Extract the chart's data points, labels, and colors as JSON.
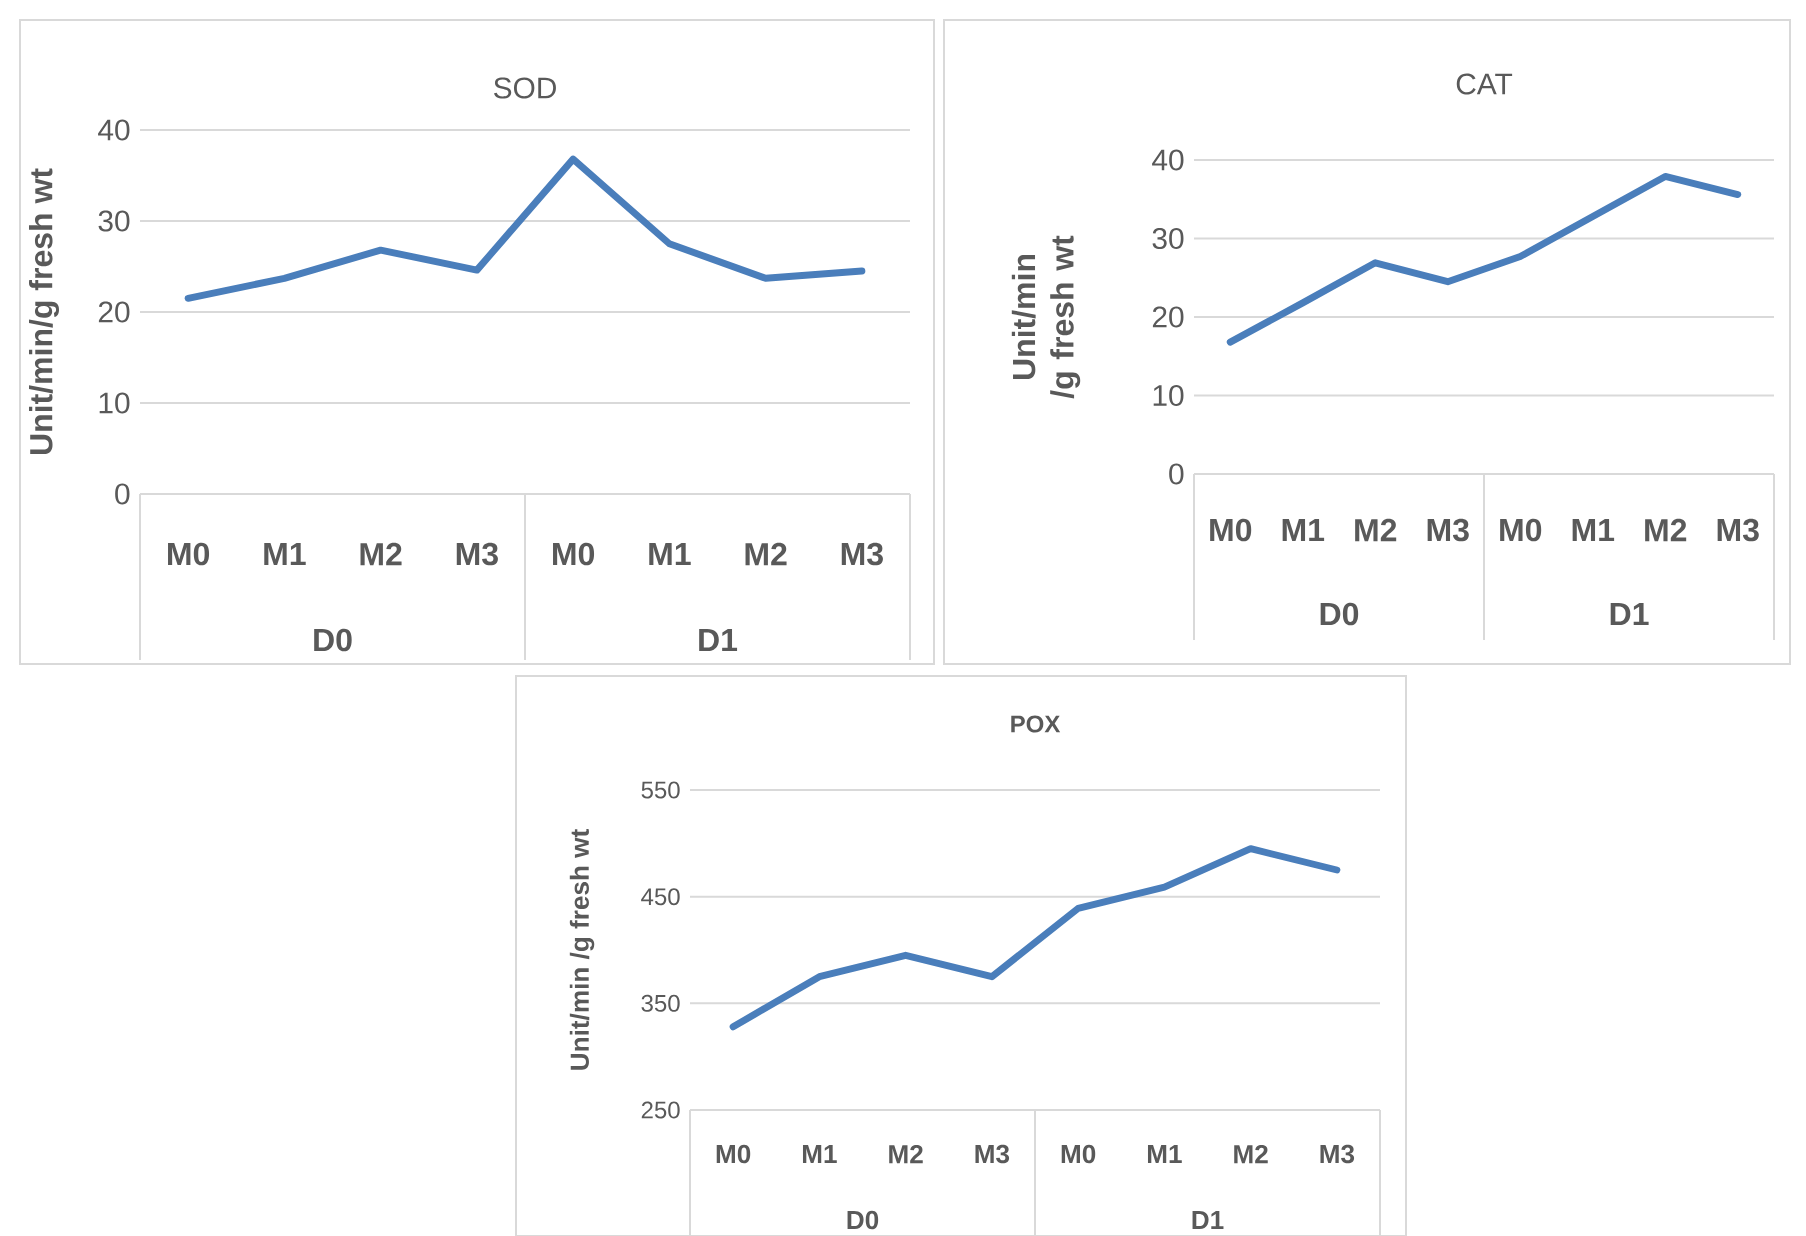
{
  "chart_data": [
    {
      "type": "line",
      "title": "SOD",
      "ylabel": "Unit/min/g fresh wt",
      "categories": [
        "M0",
        "M1",
        "M2",
        "M3",
        "M0",
        "M1",
        "M2",
        "M3"
      ],
      "values": [
        21.5,
        23.7,
        26.8,
        24.6,
        36.8,
        27.5,
        23.7,
        24.5
      ],
      "color": "#4a7ebb",
      "ylim": [
        0,
        40
      ],
      "yticks": [
        0,
        10,
        20,
        30,
        40
      ],
      "grid": "y",
      "marker": "none",
      "annotations": [
        "D0",
        "D1"
      ]
    },
    {
      "type": "line",
      "title": "CAT",
      "ylabel": "Unit/min /g fresh wt",
      "categories": [
        "M0",
        "M1",
        "M2",
        "M3",
        "M0",
        "M1",
        "M2",
        "M3"
      ],
      "values": [
        16.8,
        21.8,
        26.9,
        24.5,
        27.7,
        32.8,
        37.9,
        35.6
      ],
      "color": "#4a7ebb",
      "ylim": [
        0,
        40
      ],
      "yticks": [
        0,
        10,
        20,
        30,
        40
      ],
      "grid": "y",
      "marker": "none",
      "annotations": [
        "D0",
        "D1"
      ]
    },
    {
      "type": "line",
      "title": "POX",
      "ylabel": "Unit/min /g fresh wt",
      "categories": [
        "M0",
        "M1",
        "M2",
        "M3",
        "M0",
        "M1",
        "M2",
        "M3"
      ],
      "values": [
        328,
        375,
        395,
        375,
        439,
        459,
        495,
        475
      ],
      "color": "#4a7ebb",
      "ylim": [
        250,
        550
      ],
      "yticks": [
        250,
        350,
        450,
        550
      ],
      "grid": "y",
      "marker": "none",
      "annotations": [
        "D0",
        "D1"
      ]
    }
  ]
}
